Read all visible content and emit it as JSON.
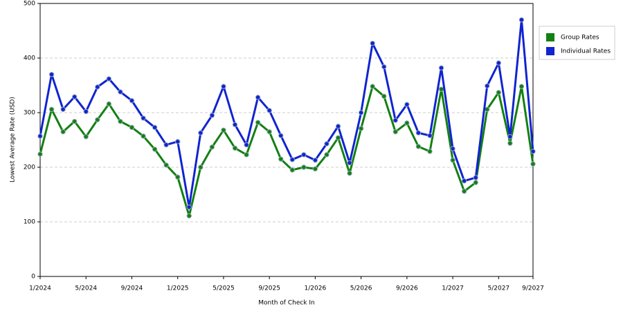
{
  "chart_data": {
    "type": "line",
    "x_label": "Month of Check In",
    "y_label": "Lowest Average Rate (USD)",
    "categories": [
      "1/2024",
      null,
      null,
      null,
      "5/2024",
      null,
      null,
      null,
      "9/2024",
      null,
      null,
      null,
      "1/2025",
      null,
      null,
      null,
      "5/2025",
      null,
      null,
      null,
      "9/2025",
      null,
      null,
      null,
      "1/2026",
      null,
      null,
      null,
      "5/2026",
      null,
      null,
      null,
      "9/2026",
      null,
      null,
      null,
      "1/2027",
      null,
      null,
      null,
      "5/2027",
      null,
      null,
      "9/2027"
    ],
    "series": [
      {
        "name": "Group Rates",
        "color": "#138013",
        "values": [
          224,
          306,
          265,
          284,
          256,
          287,
          316,
          284,
          273,
          257,
          233,
          204,
          182,
          111,
          200,
          237,
          268,
          235,
          223,
          282,
          265,
          215,
          195,
          200,
          197,
          223,
          254,
          189,
          271,
          348,
          330,
          265,
          281,
          238,
          229,
          343,
          213,
          156,
          172,
          306,
          337,
          244,
          348,
          206
        ]
      },
      {
        "name": "Individual Rates",
        "color": "#1024d0",
        "values": [
          257,
          370,
          306,
          329,
          302,
          347,
          362,
          338,
          322,
          290,
          273,
          241,
          247,
          127,
          263,
          295,
          348,
          278,
          241,
          328,
          304,
          258,
          214,
          223,
          213,
          243,
          275,
          208,
          300,
          427,
          384,
          286,
          315,
          263,
          258,
          382,
          234,
          175,
          181,
          349,
          391,
          256,
          470,
          229
        ]
      }
    ],
    "ylim": [
      0,
      500
    ],
    "yticks": [
      0,
      100,
      200,
      300,
      400,
      500
    ],
    "grid": true,
    "legend": "right"
  }
}
